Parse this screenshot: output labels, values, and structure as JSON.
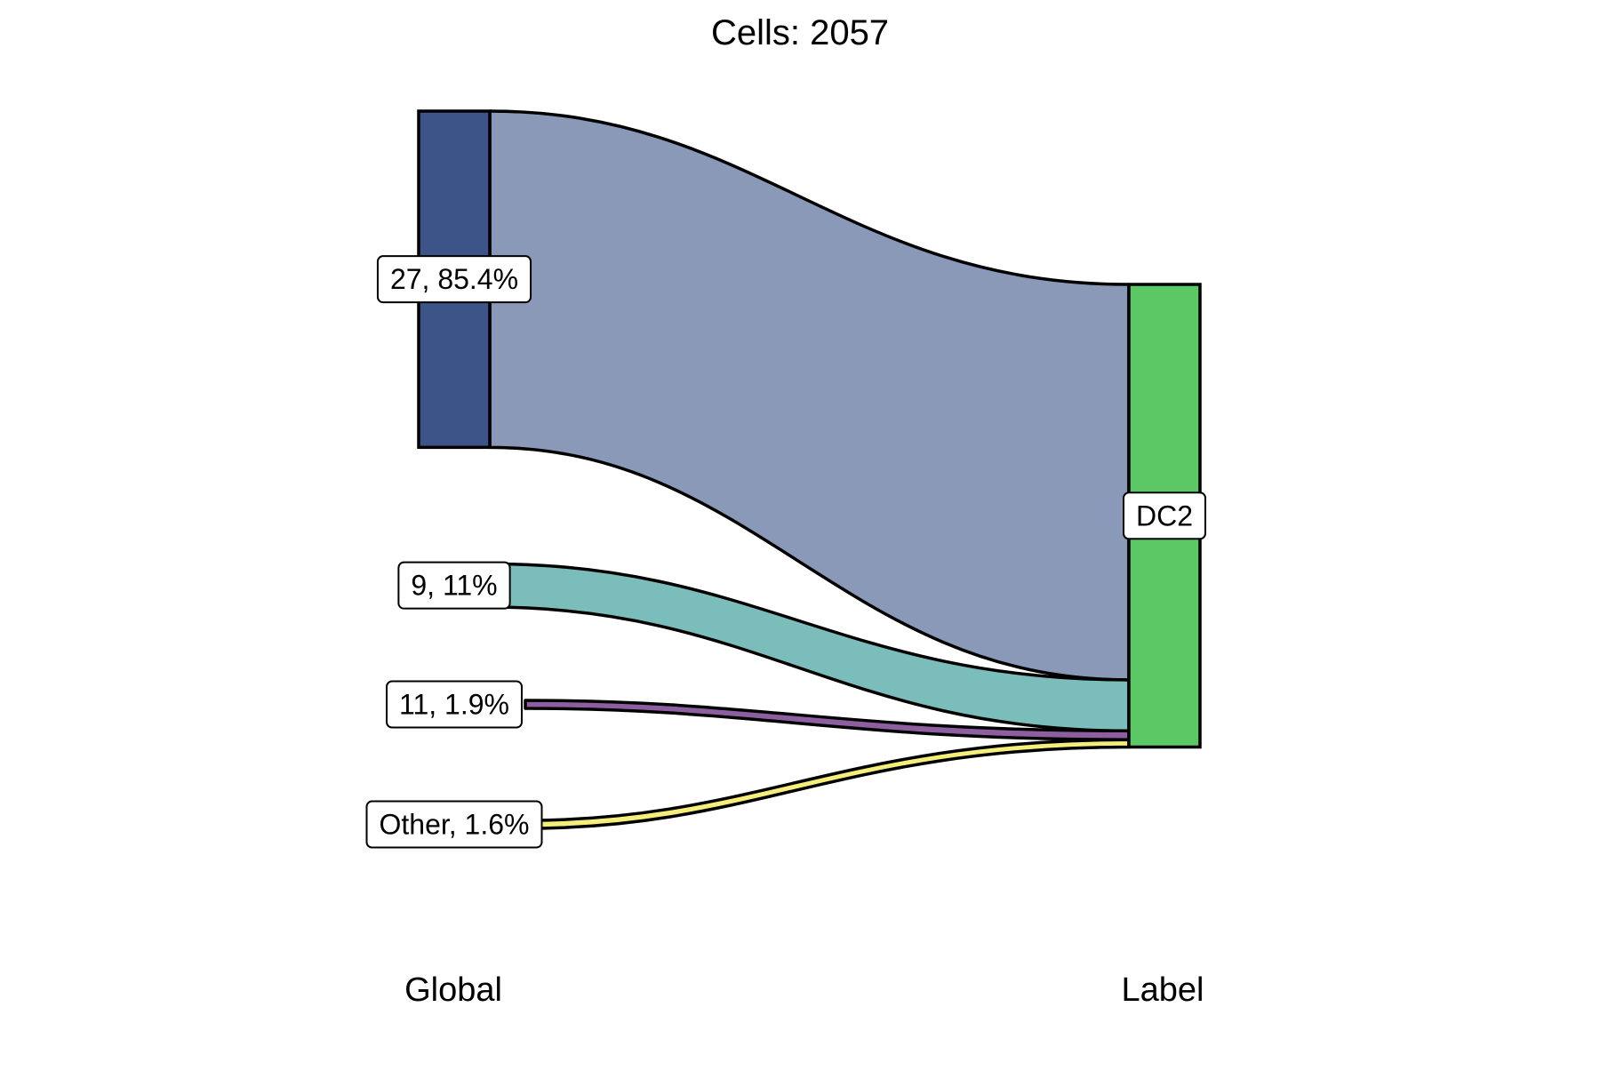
{
  "chart_data": {
    "type": "sankey",
    "title": "Cells:  2057",
    "total": 2057,
    "axes": [
      "Global",
      "Label"
    ],
    "source_nodes": [
      {
        "label": "27, 85.4%",
        "name": "27",
        "percent": 85.4,
        "color": "#3c5488",
        "flow_color": "#8a99b8"
      },
      {
        "label": "9, 11%",
        "name": "9",
        "percent": 11.0,
        "color": "#7bbdbb",
        "flow_color": "#7bbdbb"
      },
      {
        "label": "11, 1.9%",
        "name": "11",
        "percent": 1.9,
        "color": "#8e5fa0",
        "flow_color": "#8e5fa0"
      },
      {
        "label": "Other, 1.6%",
        "name": "Other",
        "percent": 1.6,
        "color": "#f5ee7a",
        "flow_color": "#f5ee7a"
      }
    ],
    "target_nodes": [
      {
        "label": "DC2",
        "name": "DC2",
        "percent": 100.0,
        "color": "#5bc765"
      }
    ],
    "flows": [
      {
        "source": "27",
        "target": "DC2",
        "percent": 85.4
      },
      {
        "source": "9",
        "target": "DC2",
        "percent": 11.0
      },
      {
        "source": "11",
        "target": "DC2",
        "percent": 1.9
      },
      {
        "source": "Other",
        "target": "DC2",
        "percent": 1.6
      }
    ]
  }
}
